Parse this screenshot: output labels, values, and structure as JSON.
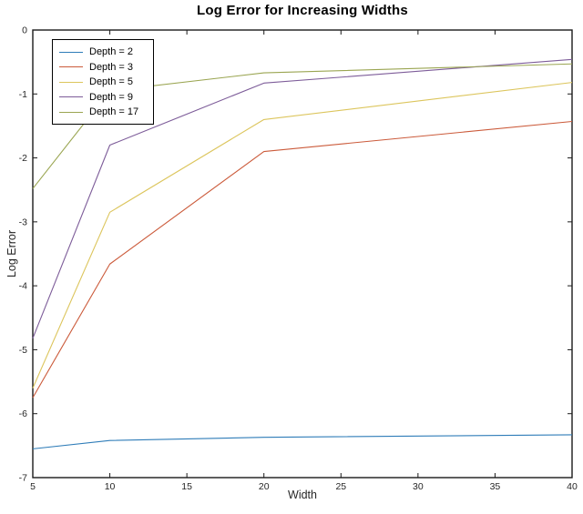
{
  "figure": {
    "background": "#ffffff",
    "axis_color": "#1a1a1a",
    "tick_label_color": "#262626"
  },
  "chart_data": {
    "type": "line",
    "title": "Log Error for Increasing Widths",
    "xlabel": "Width",
    "ylabel": "Log Error",
    "xlim": [
      5,
      40
    ],
    "ylim": [
      -7,
      0
    ],
    "grid": false,
    "legend_position": "top-left",
    "xticks": {
      "values": [
        5,
        10,
        15,
        20,
        25,
        30,
        35,
        40
      ],
      "labels": [
        "5",
        "10",
        "15",
        "20",
        "25",
        "30",
        "35",
        "40"
      ]
    },
    "yticks": {
      "values": [
        0,
        -1,
        -2,
        -3,
        -4,
        -5,
        -6,
        -7
      ],
      "labels": [
        "0",
        "-1",
        "-2",
        "-3",
        "-4",
        "-5",
        "-6",
        "-7"
      ]
    },
    "x": [
      5,
      10,
      20,
      40
    ],
    "series": [
      {
        "name": "Depth = 2",
        "color": "#2e7cb8",
        "values": [
          -6.55,
          -6.42,
          -6.37,
          -6.33
        ]
      },
      {
        "name": "Depth = 3",
        "color": "#cb5a3a",
        "values": [
          -5.75,
          -3.66,
          -1.9,
          -1.43
        ]
      },
      {
        "name": "Depth = 5",
        "color": "#dcc55c",
        "values": [
          -5.6,
          -2.85,
          -1.4,
          -0.82
        ]
      },
      {
        "name": "Depth = 9",
        "color": "#7d5c99",
        "values": [
          -4.82,
          -1.8,
          -0.83,
          -0.46
        ]
      },
      {
        "name": "Depth = 17",
        "color": "#9aa551",
        "values": [
          -2.48,
          -0.95,
          -0.67,
          -0.53
        ]
      }
    ]
  }
}
